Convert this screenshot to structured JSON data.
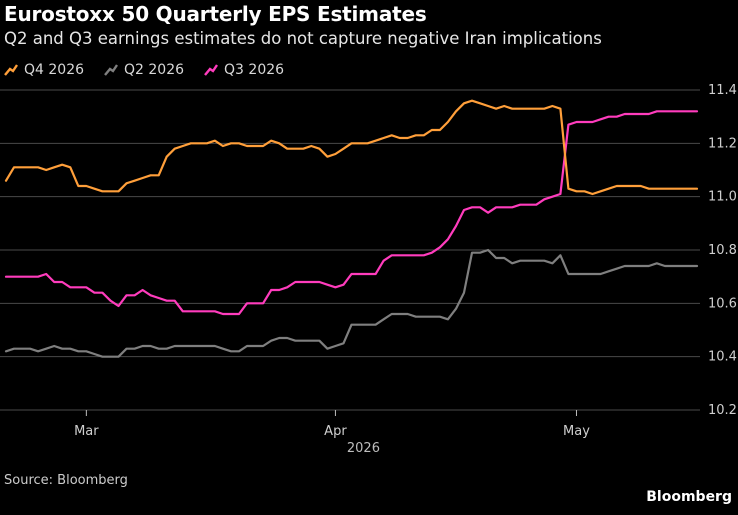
{
  "header": {
    "title": "Eurostoxx 50 Quarterly EPS Estimates",
    "subtitle": "Q2 and Q3 earnings estimates do not capture negative Iran implications"
  },
  "legend": [
    {
      "label": "Q4 2026",
      "color": "#ff9f3a"
    },
    {
      "label": "Q2 2026",
      "color": "#7f7f7f"
    },
    {
      "label": "Q3 2026",
      "color": "#ff3cbd"
    }
  ],
  "footer": {
    "source": "Source: Bloomberg",
    "brand": "Bloomberg"
  },
  "chart_data": {
    "type": "line",
    "title": "Eurostoxx 50 Quarterly EPS Estimates",
    "subtitle": "Q2 and Q3 earnings estimates do not capture negative Iran implications",
    "xlabel": "",
    "ylabel": "",
    "x_axis": {
      "year_label": "2026",
      "ticks": [
        {
          "label": "Mar",
          "day": 29
        },
        {
          "label": "Apr",
          "day": 60
        },
        {
          "label": "May",
          "day": 90
        }
      ],
      "day_range": [
        18,
        124
      ]
    },
    "y_axis": {
      "ylim": [
        10.2,
        11.4
      ],
      "ticks": [
        10.2,
        10.4,
        10.6,
        10.8,
        11.0,
        11.2,
        11.4
      ],
      "tick_labels": [
        "10.2",
        "10.4",
        "10.6",
        "10.8",
        "11.0",
        "11.2",
        "11.4"
      ],
      "position": "right"
    },
    "grid": true,
    "legend_position": "top-left",
    "series": [
      {
        "name": "Q4 2026",
        "color": "#ff9f3a",
        "points": [
          [
            19,
            11.06
          ],
          [
            20,
            11.11
          ],
          [
            22,
            11.11
          ],
          [
            23,
            11.11
          ],
          [
            24,
            11.1
          ],
          [
            25,
            11.11
          ],
          [
            26,
            11.12
          ],
          [
            27,
            11.11
          ],
          [
            28,
            11.04
          ],
          [
            29,
            11.04
          ],
          [
            30,
            11.03
          ],
          [
            31,
            11.02
          ],
          [
            32,
            11.02
          ],
          [
            33,
            11.02
          ],
          [
            34,
            11.05
          ],
          [
            35,
            11.06
          ],
          [
            36,
            11.07
          ],
          [
            37,
            11.08
          ],
          [
            38,
            11.08
          ],
          [
            39,
            11.15
          ],
          [
            40,
            11.18
          ],
          [
            41,
            11.19
          ],
          [
            42,
            11.2
          ],
          [
            43,
            11.2
          ],
          [
            44,
            11.2
          ],
          [
            45,
            11.21
          ],
          [
            46,
            11.19
          ],
          [
            47,
            11.2
          ],
          [
            48,
            11.2
          ],
          [
            49,
            11.19
          ],
          [
            50,
            11.19
          ],
          [
            51,
            11.19
          ],
          [
            52,
            11.21
          ],
          [
            53,
            11.2
          ],
          [
            54,
            11.18
          ],
          [
            55,
            11.18
          ],
          [
            56,
            11.18
          ],
          [
            57,
            11.19
          ],
          [
            58,
            11.18
          ],
          [
            59,
            11.15
          ],
          [
            60,
            11.16
          ],
          [
            61,
            11.18
          ],
          [
            62,
            11.2
          ],
          [
            63,
            11.2
          ],
          [
            64,
            11.2
          ],
          [
            65,
            11.21
          ],
          [
            66,
            11.22
          ],
          [
            67,
            11.23
          ],
          [
            68,
            11.22
          ],
          [
            69,
            11.22
          ],
          [
            70,
            11.23
          ],
          [
            71,
            11.23
          ],
          [
            72,
            11.25
          ],
          [
            73,
            11.25
          ],
          [
            74,
            11.28
          ],
          [
            75,
            11.32
          ],
          [
            76,
            11.35
          ],
          [
            77,
            11.36
          ],
          [
            78,
            11.35
          ],
          [
            79,
            11.34
          ],
          [
            80,
            11.33
          ],
          [
            81,
            11.34
          ],
          [
            82,
            11.33
          ],
          [
            83,
            11.33
          ],
          [
            84,
            11.33
          ],
          [
            85,
            11.33
          ],
          [
            86,
            11.33
          ],
          [
            87,
            11.34
          ],
          [
            88,
            11.33
          ],
          [
            89,
            11.03
          ],
          [
            90,
            11.02
          ],
          [
            91,
            11.02
          ],
          [
            92,
            11.01
          ],
          [
            93,
            11.02
          ],
          [
            94,
            11.03
          ],
          [
            95,
            11.04
          ],
          [
            96,
            11.04
          ],
          [
            97,
            11.04
          ],
          [
            98,
            11.04
          ],
          [
            99,
            11.03
          ],
          [
            100,
            11.03
          ],
          [
            101,
            11.03
          ],
          [
            102,
            11.03
          ],
          [
            103,
            11.03
          ],
          [
            104,
            11.03
          ],
          [
            105,
            11.03
          ]
        ]
      },
      {
        "name": "Q2 2026",
        "color": "#7f7f7f",
        "points": [
          [
            19,
            10.42
          ],
          [
            20,
            10.43
          ],
          [
            21,
            10.43
          ],
          [
            22,
            10.43
          ],
          [
            23,
            10.42
          ],
          [
            24,
            10.43
          ],
          [
            25,
            10.44
          ],
          [
            26,
            10.43
          ],
          [
            27,
            10.43
          ],
          [
            28,
            10.42
          ],
          [
            29,
            10.42
          ],
          [
            30,
            10.41
          ],
          [
            31,
            10.4
          ],
          [
            32,
            10.4
          ],
          [
            33,
            10.4
          ],
          [
            34,
            10.43
          ],
          [
            35,
            10.43
          ],
          [
            36,
            10.44
          ],
          [
            37,
            10.44
          ],
          [
            38,
            10.43
          ],
          [
            39,
            10.43
          ],
          [
            40,
            10.44
          ],
          [
            41,
            10.44
          ],
          [
            42,
            10.44
          ],
          [
            43,
            10.44
          ],
          [
            44,
            10.44
          ],
          [
            45,
            10.44
          ],
          [
            46,
            10.43
          ],
          [
            47,
            10.42
          ],
          [
            48,
            10.42
          ],
          [
            49,
            10.44
          ],
          [
            50,
            10.44
          ],
          [
            51,
            10.44
          ],
          [
            52,
            10.46
          ],
          [
            53,
            10.47
          ],
          [
            54,
            10.47
          ],
          [
            55,
            10.46
          ],
          [
            56,
            10.46
          ],
          [
            57,
            10.46
          ],
          [
            58,
            10.46
          ],
          [
            59,
            10.43
          ],
          [
            60,
            10.44
          ],
          [
            61,
            10.45
          ],
          [
            62,
            10.52
          ],
          [
            63,
            10.52
          ],
          [
            64,
            10.52
          ],
          [
            65,
            10.52
          ],
          [
            66,
            10.54
          ],
          [
            67,
            10.56
          ],
          [
            68,
            10.56
          ],
          [
            69,
            10.56
          ],
          [
            70,
            10.55
          ],
          [
            71,
            10.55
          ],
          [
            72,
            10.55
          ],
          [
            73,
            10.55
          ],
          [
            74,
            10.54
          ],
          [
            75,
            10.58
          ],
          [
            76,
            10.64
          ],
          [
            77,
            10.79
          ],
          [
            78,
            10.79
          ],
          [
            79,
            10.8
          ],
          [
            80,
            10.77
          ],
          [
            81,
            10.77
          ],
          [
            82,
            10.75
          ],
          [
            83,
            10.76
          ],
          [
            84,
            10.76
          ],
          [
            85,
            10.76
          ],
          [
            86,
            10.76
          ],
          [
            87,
            10.75
          ],
          [
            88,
            10.78
          ],
          [
            89,
            10.71
          ],
          [
            90,
            10.71
          ],
          [
            91,
            10.71
          ],
          [
            92,
            10.71
          ],
          [
            93,
            10.71
          ],
          [
            94,
            10.72
          ],
          [
            95,
            10.73
          ],
          [
            96,
            10.74
          ],
          [
            97,
            10.74
          ],
          [
            98,
            10.74
          ],
          [
            99,
            10.74
          ],
          [
            100,
            10.75
          ],
          [
            101,
            10.74
          ],
          [
            102,
            10.74
          ],
          [
            103,
            10.74
          ],
          [
            104,
            10.74
          ],
          [
            105,
            10.74
          ]
        ]
      },
      {
        "name": "Q3 2026",
        "color": "#ff3cbd",
        "points": [
          [
            19,
            10.7
          ],
          [
            20,
            10.7
          ],
          [
            22,
            10.7
          ],
          [
            23,
            10.7
          ],
          [
            24,
            10.71
          ],
          [
            25,
            10.68
          ],
          [
            26,
            10.68
          ],
          [
            27,
            10.66
          ],
          [
            28,
            10.66
          ],
          [
            29,
            10.66
          ],
          [
            30,
            10.64
          ],
          [
            31,
            10.64
          ],
          [
            32,
            10.61
          ],
          [
            33,
            10.59
          ],
          [
            34,
            10.63
          ],
          [
            35,
            10.63
          ],
          [
            36,
            10.65
          ],
          [
            37,
            10.63
          ],
          [
            38,
            10.62
          ],
          [
            39,
            10.61
          ],
          [
            40,
            10.61
          ],
          [
            41,
            10.57
          ],
          [
            42,
            10.57
          ],
          [
            43,
            10.57
          ],
          [
            44,
            10.57
          ],
          [
            45,
            10.57
          ],
          [
            46,
            10.56
          ],
          [
            47,
            10.56
          ],
          [
            48,
            10.56
          ],
          [
            49,
            10.6
          ],
          [
            50,
            10.6
          ],
          [
            51,
            10.6
          ],
          [
            52,
            10.65
          ],
          [
            53,
            10.65
          ],
          [
            54,
            10.66
          ],
          [
            55,
            10.68
          ],
          [
            56,
            10.68
          ],
          [
            57,
            10.68
          ],
          [
            58,
            10.68
          ],
          [
            59,
            10.67
          ],
          [
            60,
            10.66
          ],
          [
            61,
            10.67
          ],
          [
            62,
            10.71
          ],
          [
            63,
            10.71
          ],
          [
            64,
            10.71
          ],
          [
            65,
            10.71
          ],
          [
            66,
            10.76
          ],
          [
            67,
            10.78
          ],
          [
            68,
            10.78
          ],
          [
            69,
            10.78
          ],
          [
            70,
            10.78
          ],
          [
            71,
            10.78
          ],
          [
            72,
            10.79
          ],
          [
            73,
            10.81
          ],
          [
            74,
            10.84
          ],
          [
            75,
            10.89
          ],
          [
            76,
            10.95
          ],
          [
            77,
            10.96
          ],
          [
            78,
            10.96
          ],
          [
            79,
            10.94
          ],
          [
            80,
            10.96
          ],
          [
            81,
            10.96
          ],
          [
            82,
            10.96
          ],
          [
            83,
            10.97
          ],
          [
            84,
            10.97
          ],
          [
            85,
            10.97
          ],
          [
            86,
            10.99
          ],
          [
            87,
            11.0
          ],
          [
            88,
            11.01
          ],
          [
            89,
            11.27
          ],
          [
            90,
            11.28
          ],
          [
            91,
            11.28
          ],
          [
            92,
            11.28
          ],
          [
            93,
            11.29
          ],
          [
            94,
            11.3
          ],
          [
            95,
            11.3
          ],
          [
            96,
            11.31
          ],
          [
            97,
            11.31
          ],
          [
            98,
            11.31
          ],
          [
            99,
            11.31
          ],
          [
            100,
            11.32
          ],
          [
            101,
            11.32
          ],
          [
            102,
            11.32
          ],
          [
            103,
            11.32
          ],
          [
            104,
            11.32
          ],
          [
            105,
            11.32
          ]
        ]
      }
    ]
  }
}
